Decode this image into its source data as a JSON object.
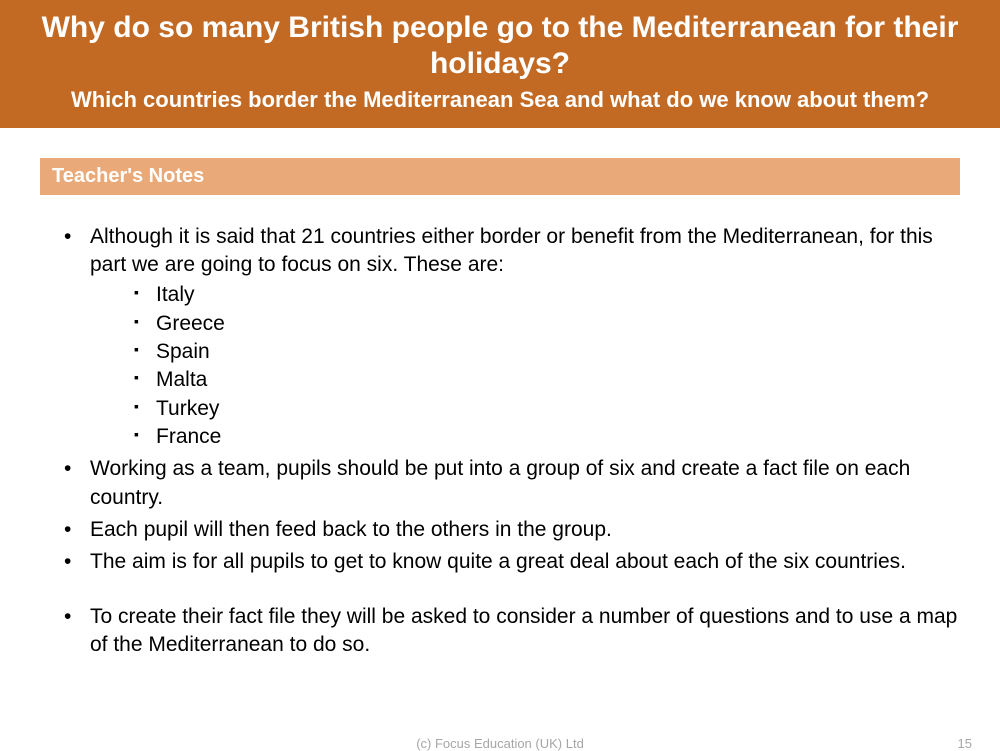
{
  "colors": {
    "header_bg": "#c26a24",
    "section_bg": "#e9a978",
    "text": "#000000",
    "footer_text": "#a6a6a6",
    "white": "#ffffff"
  },
  "header": {
    "title": "Why do so many British people go to the Mediterranean for their holidays?",
    "subtitle": "Which countries border the Mediterranean Sea and what do we know about them?"
  },
  "section": {
    "label": "Teacher's Notes"
  },
  "notes": {
    "intro": "Although it is said that 21 countries either border or benefit from the Mediterranean, for this part we are going to focus on six. These are:",
    "countries": [
      "Italy",
      "Greece",
      "Spain",
      "Malta",
      "Turkey",
      "France"
    ],
    "points": [
      "Working as a team, pupils should be put into a group of six and create a fact file on each country.",
      "Each pupil will then feed back to the others in the group.",
      "The aim is for all pupils to get to know quite a great deal about each of the six countries."
    ],
    "final": "To create their fact file they will be asked to consider a number of questions and to use a map of the Mediterranean to do so."
  },
  "footer": {
    "copyright": "(c) Focus Education (UK) Ltd",
    "page_number": "15"
  }
}
